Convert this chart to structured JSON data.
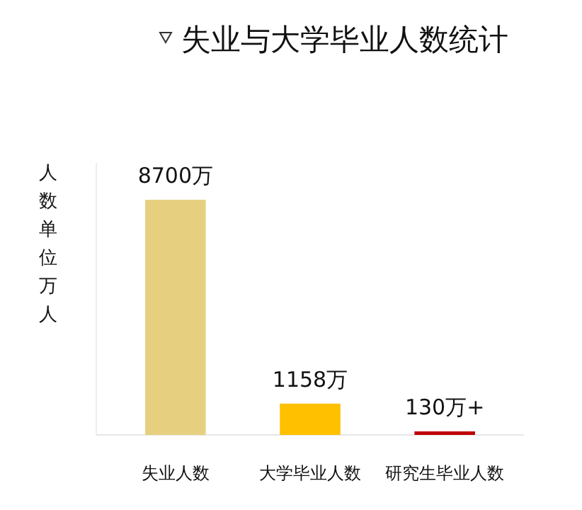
{
  "chart_data": {
    "type": "bar",
    "title": "失业与大学毕业人数统计",
    "ylabel": "人数单位万人",
    "categories": [
      "失业人数",
      "大学毕业人数",
      "研究生毕业人数"
    ],
    "values": [
      8700,
      1158,
      130
    ],
    "colors": [
      "#e6d080",
      "#ffc000",
      "#c00000"
    ],
    "value_labels": [
      "8700万",
      "1158万",
      "130万+"
    ]
  }
}
